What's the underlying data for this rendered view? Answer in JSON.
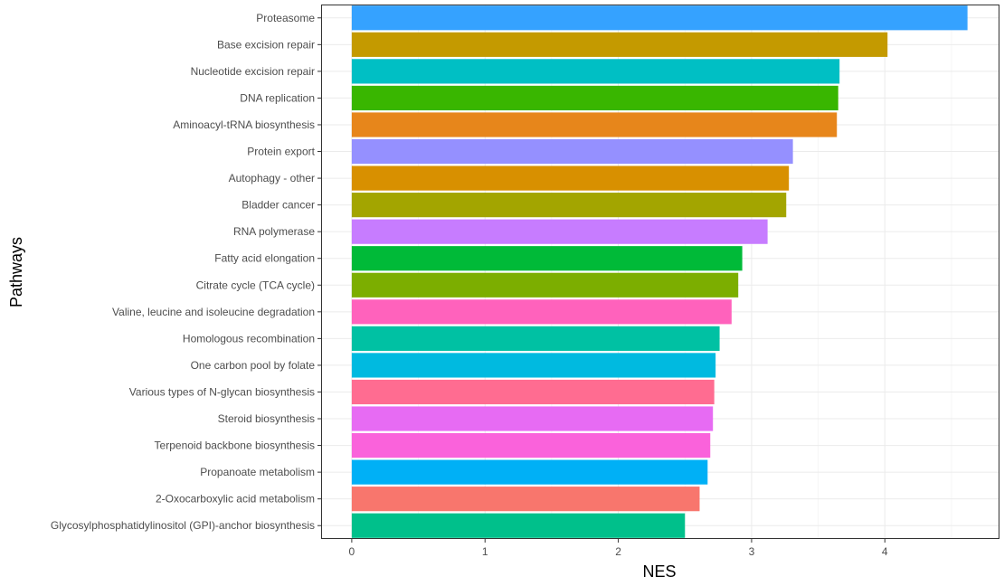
{
  "chart_data": {
    "type": "bar",
    "orientation": "horizontal",
    "xlabel": "NES",
    "ylabel": "Pathways",
    "xlim": [
      -0.23,
      4.86
    ],
    "x_ticks": [
      0,
      1,
      2,
      3,
      4
    ],
    "grid": true,
    "legend": "none",
    "categories": [
      "Proteasome",
      "Base excision repair",
      "Nucleotide excision repair",
      "DNA replication",
      "Aminoacyl-tRNA biosynthesis",
      "Protein export",
      "Autophagy - other",
      "Bladder cancer",
      "RNA polymerase",
      "Fatty acid elongation",
      "Citrate cycle (TCA cycle)",
      "Valine, leucine and isoleucine degradation",
      "Homologous recombination",
      "One carbon pool by folate",
      "Various types of N-glycan biosynthesis",
      "Steroid biosynthesis",
      "Terpenoid backbone biosynthesis",
      "Propanoate metabolism",
      "2-Oxocarboxylic acid metabolism",
      "Glycosylphosphatidylinositol (GPI)-anchor biosynthesis"
    ],
    "values": [
      4.62,
      4.02,
      3.66,
      3.65,
      3.64,
      3.31,
      3.28,
      3.26,
      3.12,
      2.93,
      2.9,
      2.85,
      2.76,
      2.73,
      2.72,
      2.71,
      2.69,
      2.67,
      2.61,
      2.5
    ],
    "colors": [
      "#35A2FF",
      "#C49A00",
      "#00BFC4",
      "#39B600",
      "#E7861B",
      "#9590FF",
      "#D89000",
      "#A3A500",
      "#C77CFF",
      "#00BA38",
      "#7CAE00",
      "#FF62BC",
      "#00C1A3",
      "#00BAE0",
      "#FF6C91",
      "#E76BF3",
      "#FA62DB",
      "#00B0F6",
      "#F8766D",
      "#00C08B"
    ]
  }
}
